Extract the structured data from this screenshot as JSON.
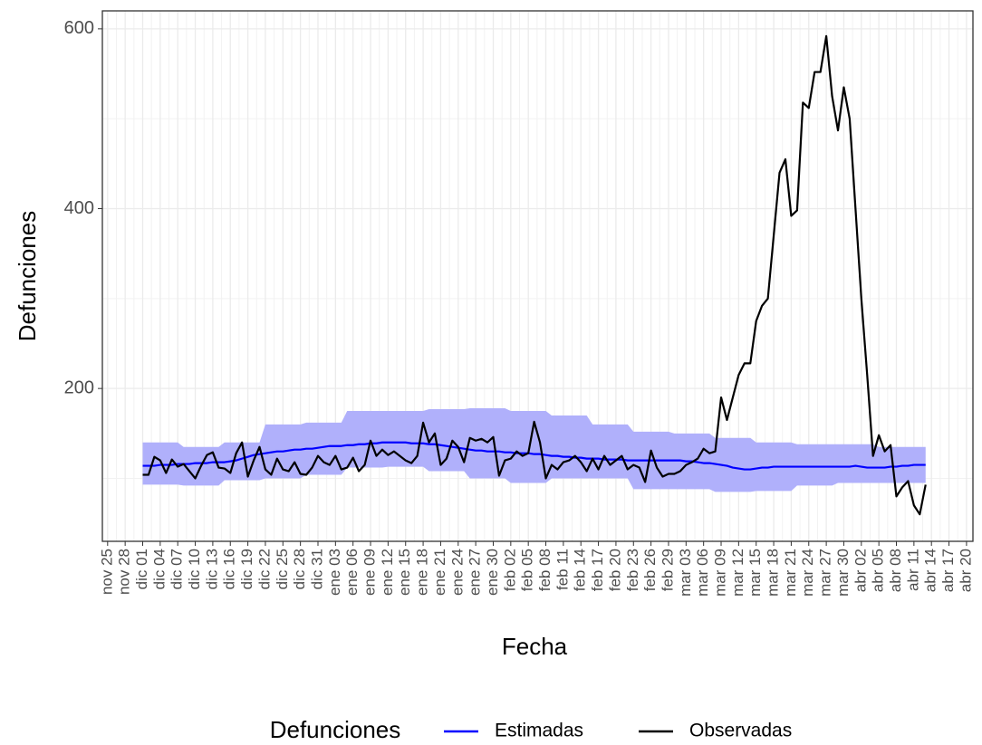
{
  "chart_data": {
    "type": "line",
    "y_label": "Defunciones",
    "x_label": "Fecha",
    "legend_title": "Defunciones",
    "categories": [
      "nov 25",
      null,
      null,
      "nov 28",
      null,
      null,
      "dic 01",
      null,
      null,
      "dic 04",
      null,
      null,
      "dic 07",
      null,
      null,
      "dic 10",
      null,
      null,
      "dic 13",
      null,
      null,
      "dic 16",
      null,
      null,
      "dic 19",
      null,
      null,
      "dic 22",
      null,
      null,
      "dic 25",
      null,
      null,
      "dic 28",
      null,
      null,
      "dic 31",
      null,
      null,
      "ene 03",
      null,
      null,
      "ene 06",
      null,
      null,
      "ene 09",
      null,
      null,
      "ene 12",
      null,
      null,
      "ene 15",
      null,
      null,
      "ene 18",
      null,
      null,
      "ene 21",
      null,
      null,
      "ene 24",
      null,
      null,
      "ene 27",
      null,
      null,
      "ene 30",
      null,
      null,
      "feb 02",
      null,
      null,
      "feb 05",
      null,
      null,
      "feb 08",
      null,
      null,
      "feb 11",
      null,
      null,
      "feb 14",
      null,
      null,
      "feb 17",
      null,
      null,
      "feb 20",
      null,
      null,
      "feb 23",
      null,
      null,
      "feb 26",
      null,
      null,
      "feb 29",
      null,
      null,
      "mar 03",
      null,
      null,
      "mar 06",
      null,
      null,
      "mar 09",
      null,
      null,
      "mar 12",
      null,
      null,
      "mar 15",
      null,
      null,
      "mar 18",
      null,
      null,
      "mar 21",
      null,
      null,
      "mar 24",
      null,
      null,
      "mar 27",
      null,
      null,
      "mar 30",
      null,
      null,
      "abr 02",
      null,
      null,
      "abr 05",
      null,
      null,
      "abr 08",
      null,
      null,
      "abr 11",
      null,
      null,
      "abr 14",
      null,
      null,
      "abr 17",
      null,
      null,
      "abr 20"
    ],
    "series": [
      {
        "name": "Estimadas",
        "color": "#0000ff",
        "band_color": "#b0b0fb",
        "values": [
          null,
          null,
          null,
          null,
          null,
          null,
          114,
          114,
          114,
          115,
          115,
          115,
          116,
          116,
          116,
          117,
          117,
          117,
          118,
          118,
          118,
          119,
          120,
          122,
          124,
          126,
          127,
          128,
          129,
          130,
          130,
          131,
          132,
          132,
          133,
          133,
          134,
          135,
          136,
          136,
          136,
          137,
          137,
          138,
          138,
          139,
          139,
          140,
          140,
          140,
          140,
          140,
          139,
          139,
          139,
          138,
          138,
          137,
          136,
          135,
          134,
          133,
          132,
          131,
          131,
          130,
          130,
          130,
          129,
          129,
          128,
          128,
          128,
          127,
          127,
          126,
          125,
          125,
          124,
          124,
          123,
          123,
          122,
          122,
          122,
          121,
          121,
          121,
          121,
          120,
          120,
          120,
          120,
          120,
          120,
          120,
          120,
          120,
          120,
          119,
          119,
          118,
          117,
          117,
          116,
          115,
          114,
          112,
          111,
          110,
          110,
          111,
          112,
          112,
          113,
          113,
          113,
          113,
          113,
          113,
          113,
          113,
          113,
          113,
          113,
          113,
          113,
          113,
          114,
          113,
          112,
          112,
          112,
          112,
          113,
          113,
          114,
          114,
          115,
          115,
          115,
          null,
          null,
          null,
          null,
          null,
          null,
          null
        ],
        "upper": [
          null,
          null,
          null,
          null,
          null,
          null,
          140,
          140,
          140,
          140,
          140,
          140,
          140,
          135,
          135,
          135,
          135,
          135,
          135,
          135,
          140,
          140,
          140,
          140,
          140,
          140,
          140,
          160,
          160,
          160,
          160,
          160,
          160,
          160,
          162,
          162,
          162,
          162,
          162,
          162,
          162,
          175,
          175,
          175,
          175,
          175,
          175,
          175,
          175,
          175,
          175,
          175,
          175,
          175,
          175,
          177,
          177,
          177,
          177,
          177,
          177,
          177,
          178,
          178,
          178,
          178,
          178,
          178,
          178,
          175,
          175,
          175,
          175,
          175,
          175,
          175,
          170,
          170,
          170,
          170,
          170,
          170,
          170,
          160,
          160,
          160,
          160,
          160,
          160,
          160,
          152,
          152,
          152,
          152,
          152,
          152,
          152,
          150,
          150,
          150,
          150,
          150,
          150,
          150,
          145,
          145,
          145,
          145,
          145,
          145,
          145,
          140,
          140,
          140,
          140,
          140,
          140,
          140,
          138,
          138,
          138,
          138,
          138,
          138,
          138,
          138,
          138,
          138,
          138,
          138,
          138,
          138,
          135,
          135,
          135,
          135,
          135,
          135,
          135,
          135,
          135,
          null,
          null,
          null,
          null,
          null,
          null,
          null
        ],
        "lower": [
          null,
          null,
          null,
          null,
          null,
          null,
          93,
          93,
          93,
          93,
          93,
          93,
          93,
          92,
          92,
          92,
          92,
          92,
          92,
          92,
          98,
          98,
          98,
          98,
          98,
          98,
          98,
          100,
          100,
          100,
          100,
          100,
          100,
          100,
          104,
          104,
          104,
          104,
          104,
          104,
          104,
          112,
          112,
          112,
          112,
          112,
          112,
          112,
          113,
          113,
          113,
          113,
          113,
          113,
          113,
          108,
          108,
          108,
          108,
          108,
          108,
          108,
          100,
          100,
          100,
          100,
          100,
          100,
          100,
          95,
          95,
          95,
          95,
          95,
          95,
          95,
          100,
          100,
          100,
          100,
          100,
          100,
          100,
          100,
          100,
          100,
          100,
          100,
          100,
          100,
          88,
          88,
          88,
          88,
          88,
          88,
          88,
          88,
          88,
          88,
          88,
          88,
          88,
          88,
          85,
          85,
          85,
          85,
          85,
          85,
          85,
          86,
          86,
          86,
          86,
          86,
          86,
          86,
          92,
          92,
          92,
          92,
          92,
          92,
          92,
          95,
          95,
          95,
          95,
          95,
          95,
          95,
          95,
          95,
          95,
          95,
          95,
          95,
          95,
          95,
          95,
          null,
          null,
          null,
          null,
          null,
          null,
          null
        ]
      },
      {
        "name": "Observadas",
        "color": "#000000",
        "values": [
          null,
          null,
          null,
          null,
          null,
          null,
          104,
          104,
          124,
          120,
          106,
          121,
          113,
          116,
          108,
          100,
          114,
          126,
          129,
          112,
          111,
          106,
          128,
          140,
          102,
          120,
          135,
          110,
          104,
          122,
          110,
          108,
          118,
          105,
          104,
          112,
          125,
          118,
          115,
          125,
          110,
          112,
          123,
          108,
          115,
          142,
          125,
          132,
          126,
          130,
          125,
          120,
          117,
          125,
          162,
          140,
          150,
          115,
          122,
          142,
          135,
          118,
          145,
          142,
          144,
          140,
          146,
          103,
          120,
          122,
          130,
          125,
          128,
          163,
          140,
          100,
          115,
          110,
          118,
          120,
          125,
          118,
          108,
          122,
          110,
          125,
          115,
          120,
          125,
          110,
          115,
          112,
          96,
          131,
          112,
          102,
          105,
          105,
          108,
          115,
          118,
          122,
          133,
          128,
          130,
          190,
          165,
          190,
          215,
          228,
          228,
          275,
          292,
          300,
          370,
          440,
          455,
          392,
          398,
          518,
          512,
          552,
          552,
          592,
          525,
          487,
          535,
          500,
          400,
          300,
          215,
          125,
          148,
          130,
          137,
          80,
          90,
          97,
          70,
          60,
          93,
          null,
          null,
          null,
          null,
          null,
          null,
          null
        ]
      }
    ],
    "xlim": [
      -0.9,
      148.1
    ],
    "ylim": [
      30,
      620
    ],
    "yticks": [
      200,
      400,
      600
    ],
    "y_minor_grid": [
      100,
      300,
      500
    ],
    "grid": true
  }
}
